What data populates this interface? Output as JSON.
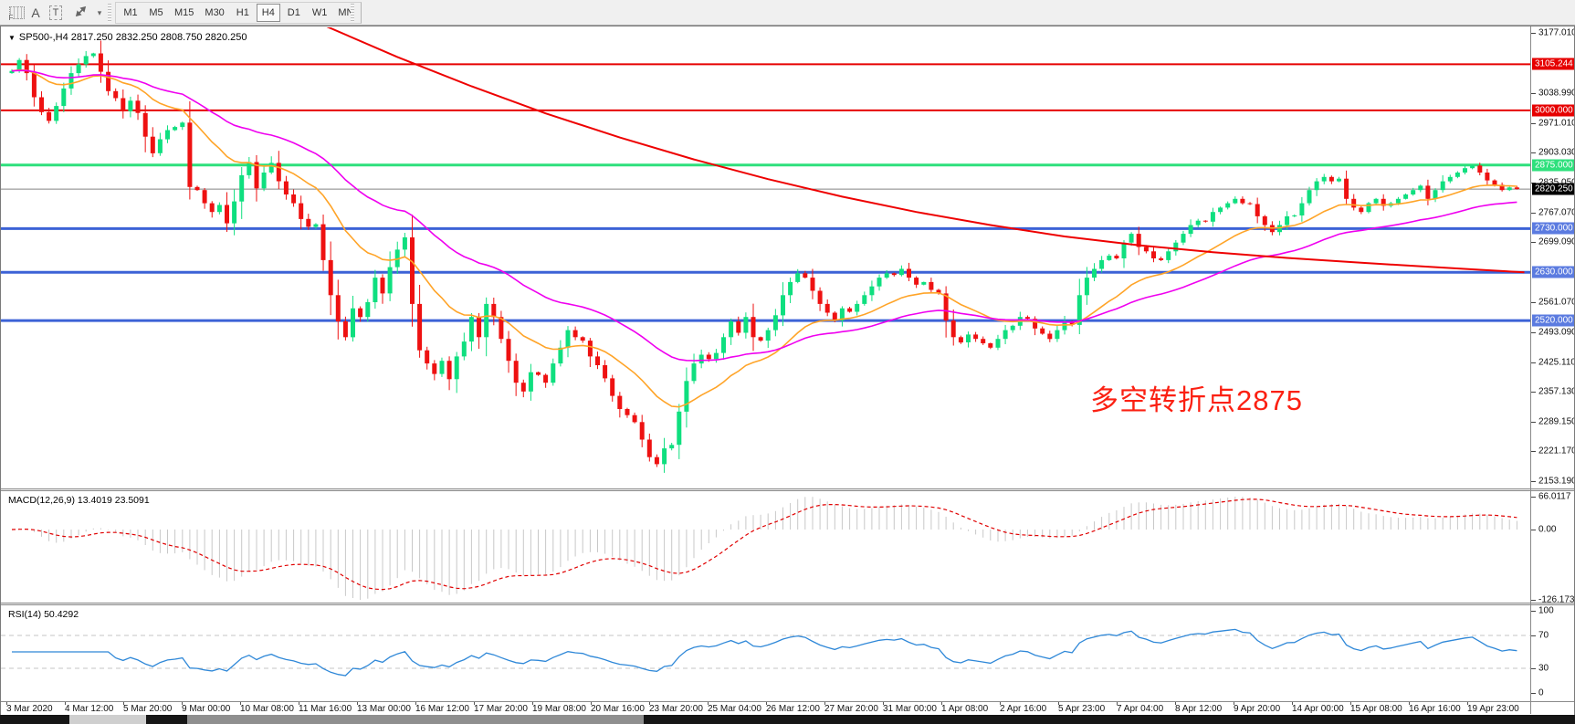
{
  "toolbar": {
    "grid_icon_label": "F",
    "font_icon_label": "A",
    "text_icon_label": "T",
    "caret_glyph": "▾",
    "timeframes": [
      "M1",
      "M5",
      "M15",
      "M30",
      "H1",
      "H4",
      "D1",
      "W1",
      "MN"
    ],
    "active_timeframe": "H4"
  },
  "chart": {
    "title": "SP500-,H4  2817.250 2832.250 2808.750 2820.250",
    "symbol": "SP500-",
    "period": "H4",
    "ohlc": {
      "open": "2817.250",
      "high": "2832.250",
      "low": "2808.750",
      "close": "2820.250"
    },
    "annotation": {
      "text": "多空转折点2875",
      "color": "#fb2012"
    }
  },
  "macd": {
    "label": "MACD(12,26,9) 13.4019 23.5091",
    "main_value": 13.4019,
    "signal_value": 23.5091,
    "axis_labels": [
      {
        "text": "66.0117",
        "value": 66.0117
      },
      {
        "text": "0.00",
        "value": 0
      },
      {
        "text": "-126.173",
        "value": -126.173
      }
    ],
    "bar_color": "#c8c8c8",
    "signal_color": "#e00000"
  },
  "rsi": {
    "label": "RSI(14) 50.4292",
    "value": 50.4292,
    "axis_labels": [
      {
        "text": "100",
        "value": 100
      },
      {
        "text": "70",
        "value": 70
      },
      {
        "text": "30",
        "value": 30
      },
      {
        "text": "0",
        "value": 0
      }
    ],
    "guide_levels": [
      70,
      30
    ],
    "line_color": "#2f88d8"
  },
  "chart_data": {
    "type": "candlestick",
    "symbol": "SP500-",
    "timeframe": "H4",
    "title": "SP500-,H4 2817.250 2832.250 2808.750 2820.250",
    "up_color": "#0fdf7f",
    "down_color": "#ee1111",
    "y_range": [
      2153.19,
      3177.01
    ],
    "first_open": 3085,
    "closes": [
      3090,
      3115,
      3085,
      3030,
      2996,
      2976,
      3010,
      3050,
      3085,
      3105,
      3124,
      3130,
      3088,
      3044,
      3028,
      2998,
      3022,
      2994,
      2940,
      2902,
      2934,
      2955,
      2962,
      2972,
      2825,
      2818,
      2788,
      2768,
      2784,
      2742,
      2792,
      2852,
      2882,
      2822,
      2858,
      2880,
      2838,
      2808,
      2788,
      2752,
      2734,
      2740,
      2658,
      2578,
      2518,
      2482,
      2548,
      2528,
      2562,
      2618,
      2582,
      2642,
      2682,
      2710,
      2558,
      2452,
      2422,
      2398,
      2428,
      2386,
      2438,
      2472,
      2528,
      2482,
      2558,
      2528,
      2478,
      2428,
      2378,
      2358,
      2402,
      2396,
      2378,
      2422,
      2458,
      2498,
      2482,
      2474,
      2438,
      2418,
      2388,
      2348,
      2318,
      2304,
      2288,
      2248,
      2208,
      2192,
      2228,
      2236,
      2312,
      2382,
      2422,
      2442,
      2432,
      2446,
      2482,
      2518,
      2492,
      2528,
      2482,
      2474,
      2498,
      2532,
      2578,
      2608,
      2628,
      2618,
      2588,
      2558,
      2538,
      2520,
      2548,
      2540,
      2558,
      2578,
      2598,
      2618,
      2628,
      2624,
      2638,
      2618,
      2602,
      2608,
      2590,
      2582,
      2520,
      2482,
      2470,
      2488,
      2478,
      2468,
      2458,
      2478,
      2498,
      2508,
      2528,
      2524,
      2502,
      2490,
      2478,
      2498,
      2518,
      2510,
      2578,
      2618,
      2638,
      2658,
      2668,
      2662,
      2698,
      2718,
      2688,
      2678,
      2662,
      2658,
      2678,
      2698,
      2718,
      2738,
      2748,
      2746,
      2768,
      2778,
      2788,
      2798,
      2788,
      2786,
      2758,
      2738,
      2722,
      2738,
      2758,
      2760,
      2788,
      2818,
      2838,
      2848,
      2838,
      2844,
      2798,
      2778,
      2768,
      2788,
      2798,
      2782,
      2788,
      2798,
      2808,
      2818,
      2828,
      2798,
      2818,
      2838,
      2848,
      2858,
      2868,
      2874,
      2858,
      2840,
      2830,
      2818,
      2824,
      2820.25
    ],
    "x_labels": [
      "3 Mar 2020",
      "4 Mar 12:00",
      "5 Mar 20:00",
      "9 Mar 00:00",
      "10 Mar 08:00",
      "11 Mar 16:00",
      "13 Mar 00:00",
      "16 Mar 12:00",
      "17 Mar 20:00",
      "19 Mar 08:00",
      "20 Mar 16:00",
      "23 Mar 20:00",
      "25 Mar 04:00",
      "26 Mar 12:00",
      "27 Mar 20:00",
      "31 Mar 00:00",
      "1 Apr 08:00",
      "2 Apr 16:00",
      "5 Apr 23:00",
      "7 Apr 04:00",
      "8 Apr 12:00",
      "9 Apr 20:00",
      "14 Apr 00:00",
      "15 Apr 08:00",
      "16 Apr 16:00",
      "19 Apr 23:00"
    ],
    "y_axis_ticks": [
      {
        "label": "3177.010",
        "price": 3177.01
      },
      {
        "label": "3038.990",
        "price": 3038.99
      },
      {
        "label": "2971.010",
        "price": 2971.01
      },
      {
        "label": "2903.030",
        "price": 2903.03
      },
      {
        "label": "2835.050",
        "price": 2835.05
      },
      {
        "label": "2767.070",
        "price": 2767.07
      },
      {
        "label": "2699.090",
        "price": 2699.09
      },
      {
        "label": "2561.070",
        "price": 2561.07
      },
      {
        "label": "2493.090",
        "price": 2493.09
      },
      {
        "label": "2425.110",
        "price": 2425.11
      },
      {
        "label": "2357.130",
        "price": 2357.13
      },
      {
        "label": "2289.150",
        "price": 2289.15
      },
      {
        "label": "2221.170",
        "price": 2221.17
      },
      {
        "label": "2153.190",
        "price": 2153.19
      }
    ],
    "horizontal_levels": [
      {
        "label": "3105.244",
        "price": 3105.244,
        "color": "#e60000",
        "width": 2
      },
      {
        "label": "3000.000",
        "price": 3000.0,
        "color": "#e60000",
        "width": 2
      },
      {
        "label": "2875.000",
        "price": 2875.0,
        "color": "#2ee07c",
        "width": 3
      },
      {
        "label": "2730.000",
        "price": 2730.0,
        "color": "#3c62d6",
        "width": 3,
        "badge": "#5b7be0"
      },
      {
        "label": "2630.000",
        "price": 2630.0,
        "color": "#3c62d6",
        "width": 3,
        "badge": "#5b7be0"
      },
      {
        "label": "2520.000",
        "price": 2520.0,
        "color": "#3c62d6",
        "width": 3,
        "badge": "#5b7be0"
      }
    ],
    "current_price": {
      "label": "2820.250",
      "value": 2820.25,
      "line_color": "#858585",
      "badge_bg": "#000000"
    },
    "moving_averages": [
      {
        "name": "fast-ma",
        "color": "#ffa428",
        "period": 18
      },
      {
        "name": "mid-ma",
        "color": "#ef00ef",
        "period": 42
      }
    ],
    "slow_ma": {
      "name": "slow-ma",
      "color": "#ee0000",
      "points_bar_price": [
        [
          42,
          3195
        ],
        [
          52,
          3122
        ],
        [
          62,
          3055
        ],
        [
          72,
          2993
        ],
        [
          82,
          2938
        ],
        [
          92,
          2888
        ],
        [
          102,
          2843
        ],
        [
          112,
          2803
        ],
        [
          122,
          2768
        ],
        [
          132,
          2738
        ],
        [
          142,
          2712
        ],
        [
          152,
          2692
        ],
        [
          162,
          2676
        ],
        [
          172,
          2663
        ],
        [
          182,
          2652
        ],
        [
          192,
          2642
        ],
        [
          198,
          2636
        ],
        [
          204,
          2630
        ]
      ]
    }
  }
}
